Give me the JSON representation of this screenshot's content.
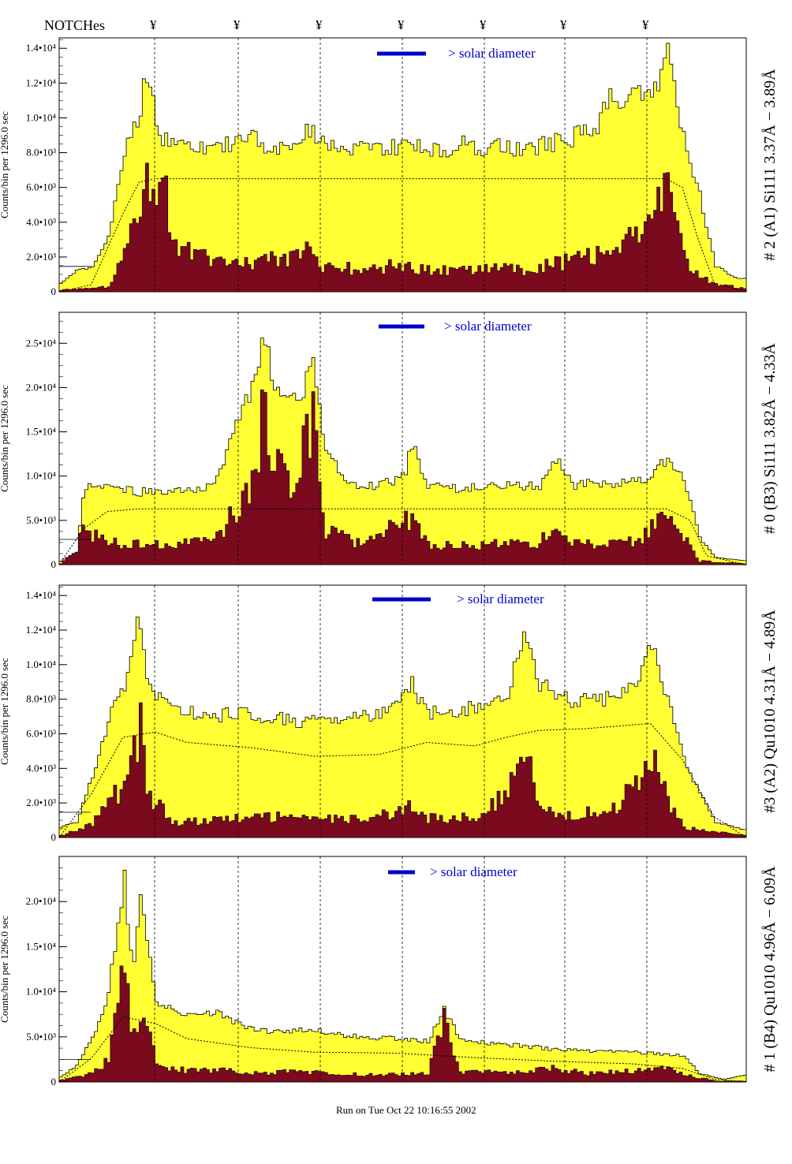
{
  "header": {
    "notches_label": "NOTCHes",
    "notch_marker": "¥",
    "notch_positions": [
      196,
      302,
      406,
      510,
      614,
      716,
      820
    ]
  },
  "legend_text": "> solar diameter",
  "footer_text": "Run on Tue Oct 22 10:16:55 2002",
  "colors": {
    "hist_fill": "#ffff33",
    "hist_inner": "#7a0a1e",
    "legend_bar": "#0000cc",
    "label_blue": "#0000cc",
    "label_black": "#000000"
  },
  "chart_data": [
    {
      "type": "area",
      "ylabel": "Counts/bin per   1296.0 sec",
      "right_label": "# 2 (A1) Si111  3.37Å − 3.89Å",
      "ylim": [
        0,
        14600
      ],
      "ytick_labels": [
        "0",
        "2.0•10³",
        "4.0•10³",
        "6.0•10³",
        "8.0•10³",
        "1.0•10⁴",
        "1.2•10⁴",
        "1.4•10⁴"
      ],
      "ytick_values": [
        0,
        2000,
        4000,
        6000,
        8000,
        10000,
        12000,
        14000
      ],
      "outer_profile": [
        [
          0,
          500
        ],
        [
          20,
          1200
        ],
        [
          40,
          1400
        ],
        [
          60,
          3200
        ],
        [
          80,
          8200
        ],
        [
          100,
          10000
        ],
        [
          105,
          13400
        ],
        [
          115,
          11000
        ],
        [
          125,
          8500
        ],
        [
          140,
          9000
        ],
        [
          160,
          8600
        ],
        [
          180,
          8200
        ],
        [
          200,
          8400
        ],
        [
          220,
          8600
        ],
        [
          240,
          8800
        ],
        [
          260,
          8400
        ],
        [
          280,
          8300
        ],
        [
          300,
          8500
        ],
        [
          310,
          9300
        ],
        [
          330,
          8600
        ],
        [
          360,
          8300
        ],
        [
          380,
          8400
        ],
        [
          400,
          8300
        ],
        [
          420,
          8300
        ],
        [
          440,
          8500
        ],
        [
          460,
          8200
        ],
        [
          480,
          8000
        ],
        [
          500,
          8600
        ],
        [
          520,
          8200
        ],
        [
          540,
          8400
        ],
        [
          560,
          8300
        ],
        [
          580,
          8200
        ],
        [
          600,
          8400
        ],
        [
          620,
          8600
        ],
        [
          640,
          8800
        ],
        [
          650,
          9600
        ],
        [
          670,
          9300
        ],
        [
          690,
          11500
        ],
        [
          700,
          10000
        ],
        [
          720,
          12000
        ],
        [
          740,
          11000
        ],
        [
          760,
          13600
        ],
        [
          780,
          9000
        ],
        [
          800,
          5500
        ],
        [
          820,
          1500
        ],
        [
          840,
          900
        ],
        [
          860,
          700
        ]
      ],
      "inner_profile": [
        [
          0,
          100
        ],
        [
          60,
          300
        ],
        [
          80,
          2500
        ],
        [
          100,
          4000
        ],
        [
          110,
          7000
        ],
        [
          120,
          4500
        ],
        [
          130,
          6500
        ],
        [
          140,
          2500
        ],
        [
          180,
          2000
        ],
        [
          220,
          1500
        ],
        [
          260,
          1800
        ],
        [
          300,
          2000
        ],
        [
          310,
          2600
        ],
        [
          330,
          1400
        ],
        [
          380,
          1300
        ],
        [
          420,
          1500
        ],
        [
          460,
          1300
        ],
        [
          500,
          1200
        ],
        [
          540,
          1300
        ],
        [
          580,
          1300
        ],
        [
          620,
          1600
        ],
        [
          660,
          2000
        ],
        [
          700,
          2200
        ],
        [
          720,
          4000
        ],
        [
          740,
          3500
        ],
        [
          760,
          7000
        ],
        [
          770,
          3500
        ],
        [
          790,
          1200
        ],
        [
          820,
          400
        ],
        [
          860,
          200
        ]
      ],
      "smooth_profile": [
        [
          0,
          0
        ],
        [
          40,
          400
        ],
        [
          80,
          4500
        ],
        [
          100,
          6300
        ],
        [
          120,
          6500
        ],
        [
          760,
          6500
        ],
        [
          780,
          6000
        ],
        [
          800,
          3000
        ],
        [
          820,
          500
        ],
        [
          860,
          0
        ]
      ]
    },
    {
      "type": "area",
      "ylabel": "Counts/bin per   1296.0 sec",
      "right_label": "# 0 (B3) Si111  3.82Å − 4.33Å",
      "ylim": [
        0,
        28500
      ],
      "ytick_labels": [
        "0",
        "5.0•10³",
        "1.0•10⁴",
        "1.5•10⁴",
        "2.0•10⁴",
        "2.5•10⁴"
      ],
      "ytick_values": [
        0,
        5000,
        10000,
        15000,
        20000,
        25000
      ],
      "outer_profile": [
        [
          0,
          400
        ],
        [
          20,
          1400
        ],
        [
          30,
          9000
        ],
        [
          60,
          8600
        ],
        [
          100,
          8200
        ],
        [
          140,
          8400
        ],
        [
          180,
          8500
        ],
        [
          200,
          10500
        ],
        [
          220,
          16500
        ],
        [
          240,
          20000
        ],
        [
          255,
          26000
        ],
        [
          270,
          19000
        ],
        [
          300,
          18000
        ],
        [
          315,
          23000
        ],
        [
          330,
          14000
        ],
        [
          360,
          9000
        ],
        [
          400,
          9000
        ],
        [
          430,
          10000
        ],
        [
          440,
          13500
        ],
        [
          460,
          9000
        ],
        [
          500,
          8500
        ],
        [
          540,
          9000
        ],
        [
          600,
          8800
        ],
        [
          620,
          12000
        ],
        [
          640,
          9000
        ],
        [
          680,
          9200
        ],
        [
          720,
          9400
        ],
        [
          740,
          10000
        ],
        [
          760,
          12000
        ],
        [
          780,
          10000
        ],
        [
          800,
          3000
        ],
        [
          820,
          800
        ],
        [
          860,
          400
        ]
      ],
      "inner_profile": [
        [
          0,
          100
        ],
        [
          30,
          4000
        ],
        [
          60,
          2500
        ],
        [
          100,
          2200
        ],
        [
          140,
          2400
        ],
        [
          180,
          2500
        ],
        [
          200,
          3500
        ],
        [
          240,
          9000
        ],
        [
          255,
          18000
        ],
        [
          270,
          12000
        ],
        [
          290,
          8000
        ],
        [
          315,
          17000
        ],
        [
          330,
          4000
        ],
        [
          380,
          2200
        ],
        [
          440,
          5500
        ],
        [
          460,
          2200
        ],
        [
          520,
          2300
        ],
        [
          600,
          2400
        ],
        [
          620,
          5000
        ],
        [
          640,
          2200
        ],
        [
          720,
          2600
        ],
        [
          760,
          5500
        ],
        [
          780,
          3000
        ],
        [
          800,
          400
        ],
        [
          860,
          100
        ]
      ],
      "smooth_profile": [
        [
          0,
          0
        ],
        [
          30,
          4000
        ],
        [
          60,
          6000
        ],
        [
          100,
          6300
        ],
        [
          760,
          6300
        ],
        [
          790,
          5000
        ],
        [
          810,
          1000
        ],
        [
          860,
          0
        ]
      ]
    },
    {
      "type": "area",
      "ylabel": "Counts/bin per   1296.0 sec",
      "right_label": "#3 (A2) Qu1010  4.31Å − 4.89Å",
      "ylim": [
        0,
        14600
      ],
      "ytick_labels": [
        "0",
        "2.0•10³",
        "4.0•10³",
        "6.0•10³",
        "8.0•10³",
        "1.0•10⁴",
        "1.2•10⁴",
        "1.4•10⁴"
      ],
      "ytick_values": [
        0,
        2000,
        4000,
        6000,
        8000,
        10000,
        12000,
        14000
      ],
      "outer_profile": [
        [
          0,
          600
        ],
        [
          20,
          900
        ],
        [
          40,
          3500
        ],
        [
          60,
          6800
        ],
        [
          80,
          9000
        ],
        [
          100,
          12800
        ],
        [
          110,
          8500
        ],
        [
          140,
          7400
        ],
        [
          180,
          7000
        ],
        [
          220,
          7200
        ],
        [
          260,
          7000
        ],
        [
          300,
          6600
        ],
        [
          340,
          6800
        ],
        [
          380,
          7000
        ],
        [
          420,
          7600
        ],
        [
          440,
          8800
        ],
        [
          460,
          7200
        ],
        [
          500,
          7400
        ],
        [
          540,
          7600
        ],
        [
          560,
          8400
        ],
        [
          580,
          12200
        ],
        [
          600,
          9000
        ],
        [
          640,
          7800
        ],
        [
          680,
          8000
        ],
        [
          720,
          9000
        ],
        [
          740,
          11500
        ],
        [
          760,
          8000
        ],
        [
          780,
          4500
        ],
        [
          800,
          2500
        ],
        [
          820,
          900
        ],
        [
          860,
          400
        ]
      ],
      "inner_profile": [
        [
          0,
          100
        ],
        [
          40,
          800
        ],
        [
          60,
          2000
        ],
        [
          80,
          3000
        ],
        [
          100,
          6700
        ],
        [
          110,
          2500
        ],
        [
          140,
          900
        ],
        [
          200,
          1000
        ],
        [
          260,
          1200
        ],
        [
          300,
          1100
        ],
        [
          360,
          1000
        ],
        [
          400,
          1200
        ],
        [
          440,
          1800
        ],
        [
          460,
          1100
        ],
        [
          520,
          1200
        ],
        [
          560,
          2500
        ],
        [
          580,
          5500
        ],
        [
          600,
          1500
        ],
        [
          640,
          1200
        ],
        [
          700,
          1800
        ],
        [
          740,
          5000
        ],
        [
          760,
          2000
        ],
        [
          780,
          600
        ],
        [
          860,
          100
        ]
      ],
      "smooth_profile": [
        [
          0,
          0
        ],
        [
          40,
          2500
        ],
        [
          80,
          5800
        ],
        [
          120,
          6100
        ],
        [
          160,
          5500
        ],
        [
          240,
          5200
        ],
        [
          320,
          4700
        ],
        [
          400,
          4800
        ],
        [
          460,
          5500
        ],
        [
          520,
          5300
        ],
        [
          560,
          5800
        ],
        [
          600,
          6200
        ],
        [
          660,
          6300
        ],
        [
          740,
          6600
        ],
        [
          780,
          4500
        ],
        [
          820,
          1200
        ],
        [
          860,
          0
        ]
      ]
    },
    {
      "type": "area",
      "ylabel": "Counts/bin per   1296.0 sec",
      "right_label": "# 1 (B4) Qu1010 4.96Å − 6.09Å",
      "ylim": [
        0,
        25000
      ],
      "ytick_labels": [
        "0",
        "5.0•10³",
        "1.0•10⁴",
        "1.5•10⁴",
        "2.0•10⁴"
      ],
      "ytick_values": [
        0,
        5000,
        10000,
        15000,
        20000
      ],
      "outer_profile": [
        [
          0,
          600
        ],
        [
          20,
          1800
        ],
        [
          40,
          4800
        ],
        [
          60,
          10000
        ],
        [
          80,
          22500
        ],
        [
          90,
          12000
        ],
        [
          100,
          20000
        ],
        [
          120,
          9000
        ],
        [
          160,
          7200
        ],
        [
          200,
          7600
        ],
        [
          230,
          6000
        ],
        [
          260,
          5600
        ],
        [
          300,
          5800
        ],
        [
          340,
          5400
        ],
        [
          380,
          5000
        ],
        [
          420,
          4800
        ],
        [
          460,
          4500
        ],
        [
          480,
          8000
        ],
        [
          500,
          4800
        ],
        [
          540,
          4200
        ],
        [
          580,
          4000
        ],
        [
          620,
          3600
        ],
        [
          660,
          3500
        ],
        [
          700,
          3400
        ],
        [
          740,
          3200
        ],
        [
          780,
          3000
        ],
        [
          800,
          900
        ],
        [
          830,
          300
        ],
        [
          860,
          800
        ]
      ],
      "inner_profile": [
        [
          0,
          200
        ],
        [
          40,
          900
        ],
        [
          60,
          2500
        ],
        [
          80,
          12000
        ],
        [
          90,
          4000
        ],
        [
          100,
          9000
        ],
        [
          120,
          2000
        ],
        [
          160,
          1200
        ],
        [
          200,
          1400
        ],
        [
          230,
          900
        ],
        [
          260,
          1000
        ],
        [
          300,
          1200
        ],
        [
          340,
          900
        ],
        [
          400,
          800
        ],
        [
          460,
          900
        ],
        [
          480,
          7500
        ],
        [
          500,
          1200
        ],
        [
          560,
          1000
        ],
        [
          620,
          1500
        ],
        [
          660,
          900
        ],
        [
          720,
          1200
        ],
        [
          760,
          1500
        ],
        [
          780,
          800
        ],
        [
          820,
          100
        ],
        [
          860,
          100
        ]
      ],
      "smooth_profile": [
        [
          0,
          0
        ],
        [
          40,
          2600
        ],
        [
          80,
          7200
        ],
        [
          120,
          6500
        ],
        [
          160,
          4800
        ],
        [
          240,
          3800
        ],
        [
          320,
          3300
        ],
        [
          420,
          3200
        ],
        [
          520,
          2700
        ],
        [
          620,
          2300
        ],
        [
          720,
          2000
        ],
        [
          780,
          1500
        ],
        [
          820,
          300
        ],
        [
          860,
          0
        ]
      ]
    }
  ]
}
